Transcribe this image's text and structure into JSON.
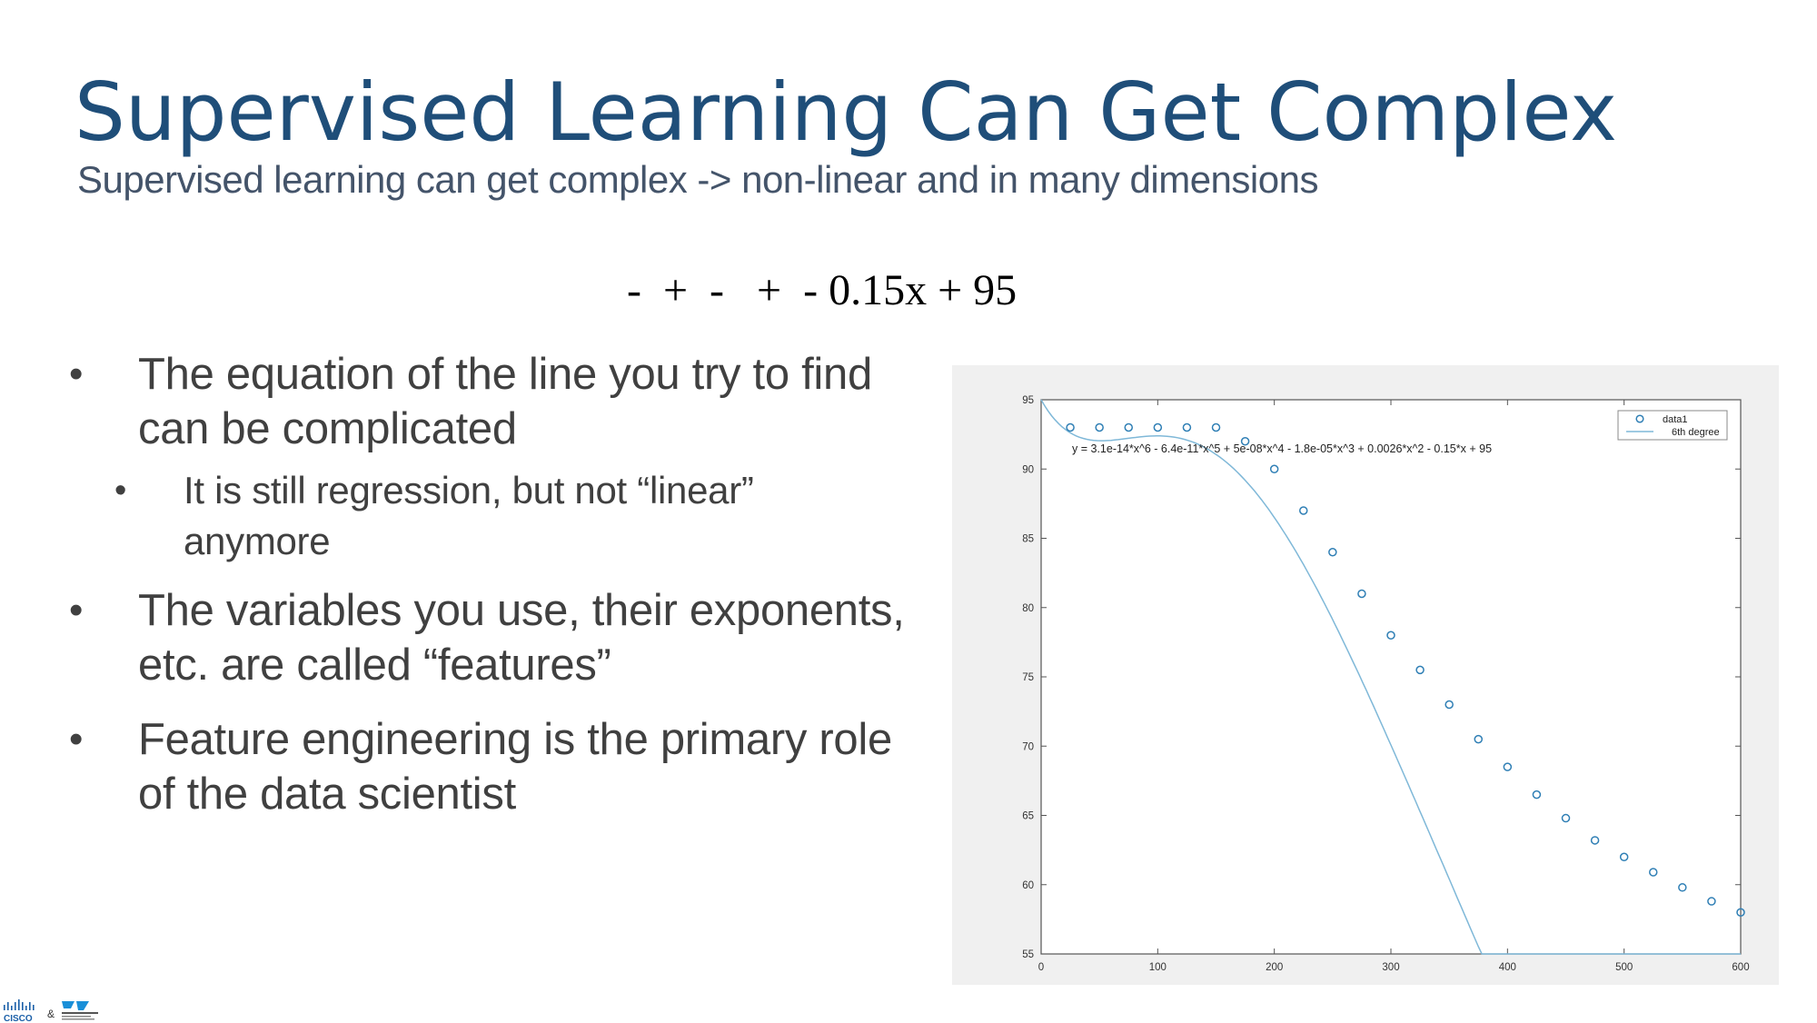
{
  "slide": {
    "title": "Supervised Learning Can Get Complex",
    "subtitle": "Supervised learning can get complex -> non-linear and in many dimensions",
    "equation": "-  +  -   +  - 0.15x + 95"
  },
  "bullets": [
    {
      "level": 1,
      "lines": [
        "The equation of the line you try to find",
        "can be complicated"
      ]
    },
    {
      "level": 2,
      "lines": [
        "It is still regression, but not “linear”",
        "anymore"
      ]
    },
    {
      "level": 1,
      "lines": [
        "The variables you use, their exponents,",
        "etc. are called “features”"
      ]
    },
    {
      "level": 1,
      "lines": [
        "Feature engineering is the primary role",
        "of the data scientist"
      ]
    }
  ],
  "chart_data": {
    "type": "scatter",
    "xlim": [
      0,
      600
    ],
    "ylim": [
      55,
      95
    ],
    "xticks": [
      0,
      100,
      200,
      300,
      400,
      500,
      600
    ],
    "yticks": [
      55,
      60,
      65,
      70,
      75,
      80,
      85,
      90,
      95
    ],
    "annotation": "y = 3.1e-14*x^6 - 6.4e-11*x^5 + 5e-08*x^4 - 1.8e-05*x^3 + 0.0026*x^2 - 0.15*x + 95",
    "legend_position": "top-right",
    "series": [
      {
        "name": "data1",
        "kind": "markers",
        "color": "#2f7fb5",
        "x": [
          25,
          50,
          75,
          100,
          125,
          150,
          175,
          200,
          225,
          250,
          275,
          300,
          325,
          350,
          375,
          400,
          425,
          450,
          475,
          500,
          525,
          550,
          575,
          600
        ],
        "y": [
          93,
          93,
          93,
          93,
          93,
          93,
          92,
          90,
          87,
          84,
          81,
          78,
          75.5,
          73,
          70.5,
          68.5,
          66.5,
          64.8,
          63.2,
          62,
          60.9,
          59.8,
          58.8,
          58
        ]
      },
      {
        "name": "6th degree",
        "kind": "line",
        "color": "#7fb8d8",
        "coefficients": [
          95,
          -0.15,
          0.0026,
          -1.8e-05,
          5e-08,
          -6.4e-11,
          3.1e-14
        ]
      }
    ]
  },
  "logo": {
    "text": "CISCO"
  }
}
